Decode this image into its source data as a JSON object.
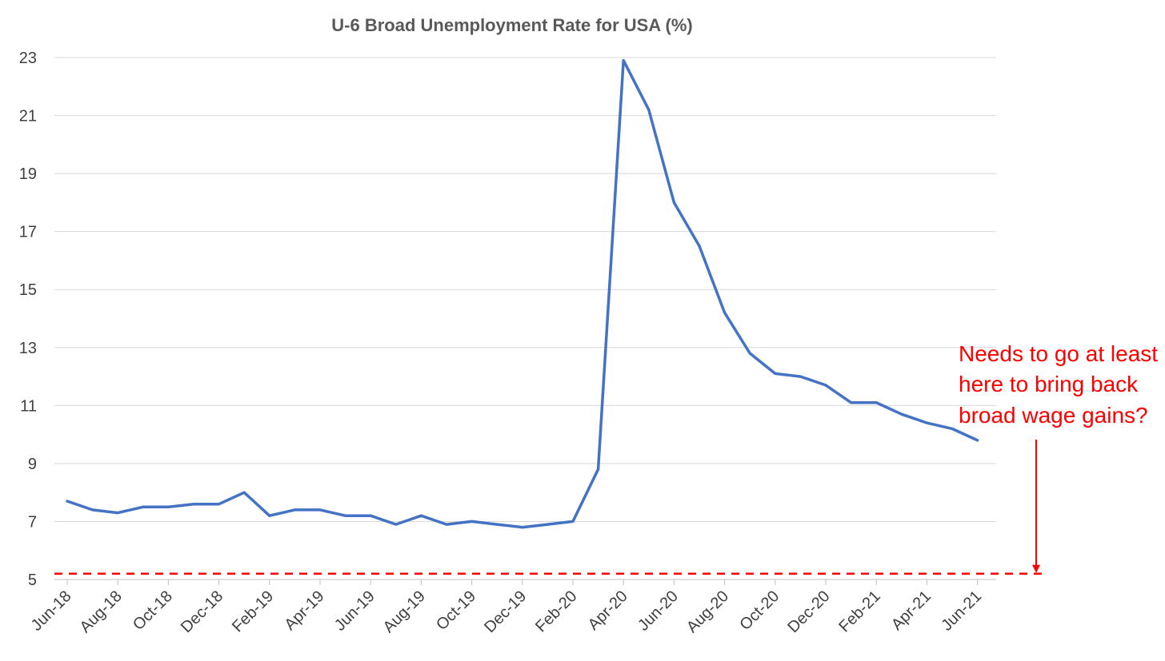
{
  "chart_data": {
    "type": "line",
    "title": "U-6 Broad Unemployment Rate for USA (%)",
    "xlabel": "",
    "ylabel": "",
    "ylim": [
      5,
      23
    ],
    "y_ticks": [
      "5",
      "7",
      "9",
      "11",
      "13",
      "15",
      "17",
      "19",
      "21",
      "23"
    ],
    "grid": true,
    "x": [
      "Jun-18",
      "Jul-18",
      "Aug-18",
      "Sep-18",
      "Oct-18",
      "Nov-18",
      "Dec-18",
      "Jan-19",
      "Feb-19",
      "Mar-19",
      "Apr-19",
      "May-19",
      "Jun-19",
      "Jul-19",
      "Aug-19",
      "Sep-19",
      "Oct-19",
      "Nov-19",
      "Dec-19",
      "Jan-20",
      "Feb-20",
      "Mar-20",
      "Apr-20",
      "May-20",
      "Jun-20",
      "Jul-20",
      "Aug-20",
      "Sep-20",
      "Oct-20",
      "Nov-20",
      "Dec-20",
      "Jan-21",
      "Feb-21",
      "Mar-21",
      "Apr-21",
      "May-21",
      "Jun-21"
    ],
    "x_tick_labels": [
      "Jun-18",
      "Aug-18",
      "Oct-18",
      "Dec-18",
      "Feb-19",
      "Apr-19",
      "Jun-19",
      "Aug-19",
      "Oct-19",
      "Dec-19",
      "Feb-20",
      "Apr-20",
      "Jun-20",
      "Aug-20",
      "Oct-20",
      "Dec-20",
      "Feb-21",
      "Apr-21",
      "Jun-21"
    ],
    "series": [
      {
        "values": [
          7.7,
          7.4,
          7.3,
          7.5,
          7.5,
          7.6,
          7.6,
          8.0,
          7.2,
          7.4,
          7.4,
          7.2,
          7.2,
          6.9,
          7.2,
          6.9,
          7.0,
          6.9,
          6.8,
          6.9,
          7.0,
          8.8,
          22.9,
          21.2,
          18.0,
          16.5,
          14.2,
          12.8,
          12.1,
          12.0,
          11.7,
          11.1,
          11.1,
          10.7,
          10.4,
          10.2,
          9.8
        ],
        "color": "#4472c4"
      }
    ],
    "reference_line": {
      "value": 5.2,
      "style": "dashed",
      "color": "#ff0000"
    },
    "annotation": {
      "lines": [
        "Needs to go at least",
        "here to bring back",
        "broad wage gains?"
      ],
      "color": "#ff0000"
    }
  }
}
